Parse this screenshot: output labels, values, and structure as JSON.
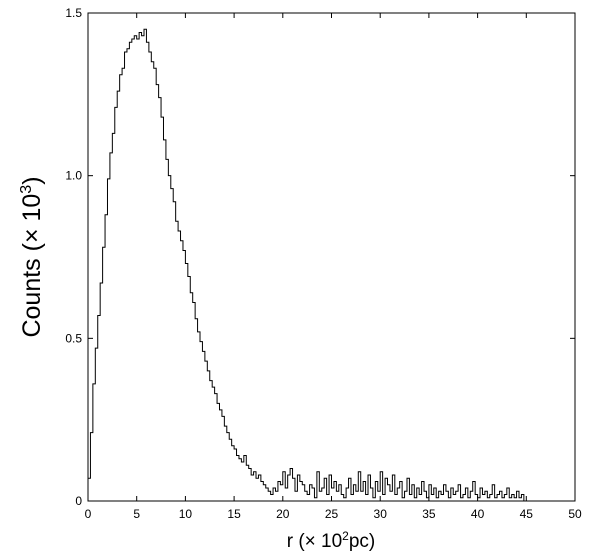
{
  "chart_data": {
    "type": "histogram",
    "xlabel": "r (× 10²pc)",
    "ylabel": "Counts (× 10³)",
    "xlim": [
      0,
      50
    ],
    "ylim": [
      0,
      1.5
    ],
    "xticks": [
      0,
      5,
      10,
      15,
      20,
      25,
      30,
      35,
      40,
      45,
      50
    ],
    "yticks": [
      0,
      0.5,
      1.0,
      1.5
    ],
    "xtick_labels": [
      "0",
      "5",
      "10",
      "15",
      "20",
      "25",
      "30",
      "35",
      "40",
      "45",
      "50"
    ],
    "ytick_labels": [
      "0",
      "0.5",
      "1.0",
      "1.5"
    ],
    "grid": false,
    "legend": "none",
    "line_color": "#000000",
    "bin_width": 0.25,
    "bin_start": 0,
    "values": [
      0.07,
      0.21,
      0.36,
      0.47,
      0.57,
      0.67,
      0.78,
      0.88,
      0.99,
      1.07,
      1.13,
      1.21,
      1.26,
      1.31,
      1.33,
      1.38,
      1.39,
      1.41,
      1.42,
      1.43,
      1.42,
      1.44,
      1.43,
      1.45,
      1.41,
      1.38,
      1.35,
      1.33,
      1.28,
      1.24,
      1.18,
      1.11,
      1.05,
      1.0,
      0.96,
      0.92,
      0.86,
      0.83,
      0.8,
      0.77,
      0.73,
      0.69,
      0.64,
      0.61,
      0.56,
      0.52,
      0.49,
      0.46,
      0.43,
      0.4,
      0.37,
      0.35,
      0.33,
      0.3,
      0.28,
      0.26,
      0.23,
      0.21,
      0.19,
      0.17,
      0.16,
      0.14,
      0.13,
      0.12,
      0.14,
      0.11,
      0.1,
      0.08,
      0.09,
      0.07,
      0.08,
      0.06,
      0.05,
      0.04,
      0.03,
      0.02,
      0.04,
      0.03,
      0.06,
      0.05,
      0.09,
      0.04,
      0.08,
      0.1,
      0.07,
      0.03,
      0.08,
      0.06,
      0.05,
      0.03,
      0.02,
      0.05,
      0.04,
      0.01,
      0.09,
      0.03,
      0.04,
      0.07,
      0.02,
      0.08,
      0.04,
      0.06,
      0.03,
      0.05,
      0.02,
      0.01,
      0.04,
      0.07,
      0.02,
      0.05,
      0.03,
      0.09,
      0.03,
      0.06,
      0.02,
      0.08,
      0.04,
      0.01,
      0.06,
      0.03,
      0.09,
      0.02,
      0.07,
      0.05,
      0.03,
      0.08,
      0.02,
      0.04,
      0.06,
      0.01,
      0.03,
      0.07,
      0.02,
      0.05,
      0.01,
      0.04,
      0.02,
      0.06,
      0.03,
      0.01,
      0.05,
      0.02,
      0.04,
      0.01,
      0.03,
      0.02,
      0.05,
      0.03,
      0.01,
      0.04,
      0.02,
      0.03,
      0.05,
      0.01,
      0.02,
      0.04,
      0.01,
      0.03,
      0.06,
      0.02,
      0.01,
      0.04,
      0.02,
      0.03,
      0.01,
      0.02,
      0.05,
      0.01,
      0.02,
      0.03,
      0.01,
      0.02,
      0.04,
      0.01,
      0.02,
      0.01,
      0.03,
      0.01,
      0.02
    ]
  }
}
